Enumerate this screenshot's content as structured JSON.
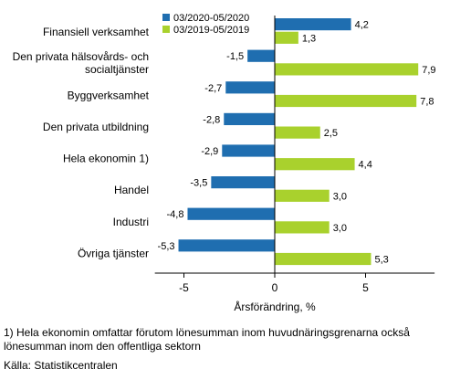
{
  "chart_data": {
    "type": "bar",
    "orientation": "horizontal",
    "categories": [
      [
        "Finansiell verksamhet"
      ],
      [
        "Den privata hälsovårds- och",
        "socialtjänster"
      ],
      [
        "Byggverksamhet"
      ],
      [
        "Den privata utbildning"
      ],
      [
        "Hela ekonomin 1)"
      ],
      [
        "Handel"
      ],
      [
        "Industri"
      ],
      [
        "Övriga tjänster"
      ]
    ],
    "series": [
      {
        "name": "03/2020-05/2020",
        "color": "#1f6eb0",
        "values": [
          4.2,
          -1.5,
          -2.7,
          -2.8,
          -2.9,
          -3.5,
          -4.8,
          -5.3
        ],
        "labels": [
          "4,2",
          "-1,5",
          "-2,7",
          "-2,8",
          "-2,9",
          "-3,5",
          "-4,8",
          "-5,3"
        ]
      },
      {
        "name": "03/2019-05/2019",
        "color": "#a9d12d",
        "values": [
          1.3,
          7.9,
          7.8,
          2.5,
          4.4,
          3.0,
          3.0,
          5.3
        ],
        "labels": [
          "1,3",
          "7,9",
          "7,8",
          "2,5",
          "4,4",
          "3,0",
          "3,0",
          "5,3"
        ]
      }
    ],
    "xlabel": "Årsförändring, %",
    "xlim": [
      -6.6,
      8.8
    ],
    "xticks": [
      -5,
      0,
      5
    ],
    "xtick_labels": [
      "-5",
      "0",
      "5"
    ],
    "grid": false,
    "legend_position": "top"
  },
  "footnote": "1) Hela ekonomin omfattar förutom lönesumman inom huvudnäringsgrenarna också lönesumman inom den offentliga sektorn",
  "source": "Källa: Statistikcentralen"
}
